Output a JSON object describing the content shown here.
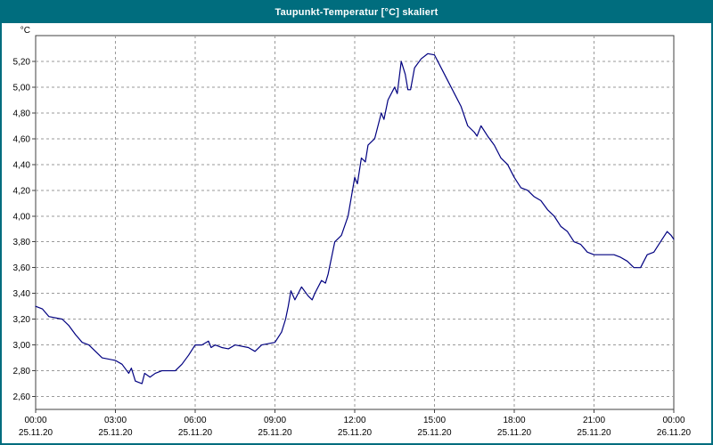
{
  "window": {
    "title": "Taupunkt-Temperatur [°C] skaliert"
  },
  "colors": {
    "titlebar": "#006d7e",
    "window_border": "#006d7e",
    "line": "#000080",
    "grid": "#9a9a9a",
    "plot_border": "#404040",
    "text": "#000000",
    "plot_background": "#ffffff"
  },
  "chart_data": {
    "type": "line",
    "title": "Taupunkt-Temperatur [°C] skaliert",
    "y_unit_label": "°C",
    "grid": true,
    "legend": "none",
    "ylim": [
      2.5,
      5.4
    ],
    "xlim_hours": [
      0,
      24
    ],
    "y_ticks": [
      2.6,
      2.8,
      3.0,
      3.2,
      3.4,
      3.6,
      3.8,
      4.0,
      4.2,
      4.4,
      4.6,
      4.8,
      5.0,
      5.2
    ],
    "y_tick_labels": [
      "2,60",
      "2,80",
      "3,00",
      "3,20",
      "3,40",
      "3,60",
      "3,80",
      "4,00",
      "4,20",
      "4,40",
      "4,60",
      "4,80",
      "5,00",
      "5,20"
    ],
    "x_ticks_hours": [
      0,
      3,
      6,
      9,
      12,
      15,
      18,
      21,
      24
    ],
    "x_tick_labels": [
      "00:00",
      "03:00",
      "06:00",
      "09:00",
      "12:00",
      "15:00",
      "18:00",
      "21:00",
      "00:00"
    ],
    "x_date_labels": [
      "25.11.20",
      "25.11.20",
      "25.11.20",
      "25.11.20",
      "25.11.20",
      "25.11.20",
      "25.11.20",
      "25.11.20",
      "26.11.20"
    ],
    "series": [
      {
        "name": "Taupunkt-Temperatur",
        "x_hours": [
          0,
          0.25,
          0.5,
          1.0,
          1.25,
          1.5,
          1.75,
          2.0,
          2.25,
          2.5,
          3.0,
          3.25,
          3.5,
          3.6,
          3.75,
          4.0,
          4.1,
          4.3,
          4.5,
          4.75,
          5.0,
          5.25,
          5.5,
          5.75,
          6.0,
          6.25,
          6.5,
          6.6,
          6.75,
          7.0,
          7.25,
          7.5,
          8.0,
          8.25,
          8.5,
          9.0,
          9.25,
          9.4,
          9.5,
          9.6,
          9.75,
          10.0,
          10.25,
          10.4,
          10.5,
          10.75,
          10.9,
          11.0,
          11.25,
          11.5,
          11.75,
          12.0,
          12.1,
          12.25,
          12.4,
          12.5,
          12.75,
          13.0,
          13.1,
          13.25,
          13.5,
          13.6,
          13.75,
          13.9,
          14.0,
          14.1,
          14.25,
          14.5,
          14.75,
          15.0,
          15.25,
          15.5,
          15.75,
          16.0,
          16.25,
          16.5,
          16.6,
          16.75,
          17.0,
          17.25,
          17.5,
          17.75,
          18.0,
          18.25,
          18.5,
          18.75,
          19.0,
          19.25,
          19.5,
          19.75,
          20.0,
          20.25,
          20.5,
          20.75,
          21.0,
          21.5,
          21.75,
          22.0,
          22.25,
          22.5,
          22.75,
          23.0,
          23.25,
          23.5,
          23.75,
          23.9,
          24.0
        ],
        "y": [
          3.3,
          3.28,
          3.22,
          3.2,
          3.15,
          3.08,
          3.02,
          3.0,
          2.95,
          2.9,
          2.88,
          2.85,
          2.78,
          2.82,
          2.72,
          2.7,
          2.78,
          2.75,
          2.78,
          2.8,
          2.8,
          2.8,
          2.85,
          2.92,
          3.0,
          3.0,
          3.03,
          2.98,
          3.0,
          2.98,
          2.97,
          3.0,
          2.98,
          2.95,
          3.0,
          3.02,
          3.1,
          3.2,
          3.3,
          3.42,
          3.35,
          3.45,
          3.38,
          3.35,
          3.4,
          3.5,
          3.48,
          3.55,
          3.8,
          3.85,
          4.0,
          4.3,
          4.25,
          4.45,
          4.42,
          4.55,
          4.6,
          4.8,
          4.75,
          4.9,
          5.0,
          4.95,
          5.2,
          5.1,
          4.98,
          4.98,
          5.15,
          5.22,
          5.26,
          5.25,
          5.15,
          5.05,
          4.95,
          4.85,
          4.7,
          4.65,
          4.62,
          4.7,
          4.62,
          4.55,
          4.45,
          4.4,
          4.3,
          4.22,
          4.2,
          4.15,
          4.12,
          4.05,
          4.0,
          3.92,
          3.88,
          3.8,
          3.78,
          3.72,
          3.7,
          3.7,
          3.7,
          3.68,
          3.65,
          3.6,
          3.6,
          3.7,
          3.72,
          3.8,
          3.88,
          3.85,
          3.82
        ]
      }
    ]
  }
}
